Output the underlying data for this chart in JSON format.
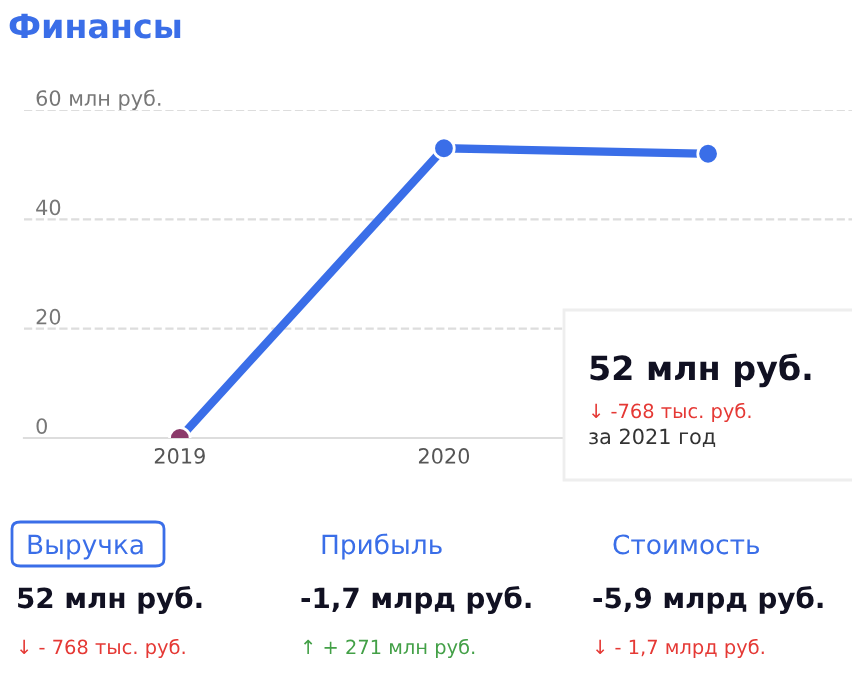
{
  "chart_data": [
    {
      "type": "line",
      "title": "Финансы",
      "categories": [
        "2019",
        "2020",
        null
      ],
      "series": [
        {
          "color": "#3a6ee8",
          "colors": [
            "#8b3a6a",
            "#3a6ee8",
            "#3a6ee8"
          ],
          "values": [
            0,
            53,
            52
          ]
        }
      ],
      "ylim": [
        0,
        60
      ],
      "yticks": [
        0,
        20,
        40,
        {
          "value": 60,
          "label": "60 млн руб."
        }
      ],
      "grid": "y",
      "marker": "circle",
      "line_style": "solid",
      "annotations": [
        "52 млн руб.",
        "↓ -768 тыс. руб.",
        "за 2021 год"
      ]
    },
    {
      "type": "other",
      "annotations": [
        "Выручка",
        "Прибыль",
        "Стоимость",
        "52 млн руб.",
        "-1,7 млрд руб.",
        "-5,9 млрд руб.",
        "↓ - 768 тыс. руб.",
        "↑ + 271 млн руб.",
        "↓ - 1,7 млрд руб."
      ],
      "colors": [
        "#3a6ee8",
        "#3a6ee8",
        "#3a6ee8",
        "#111122",
        "#111122",
        "#111122",
        "#e53935",
        "#43a047",
        "#e53935"
      ]
    }
  ]
}
